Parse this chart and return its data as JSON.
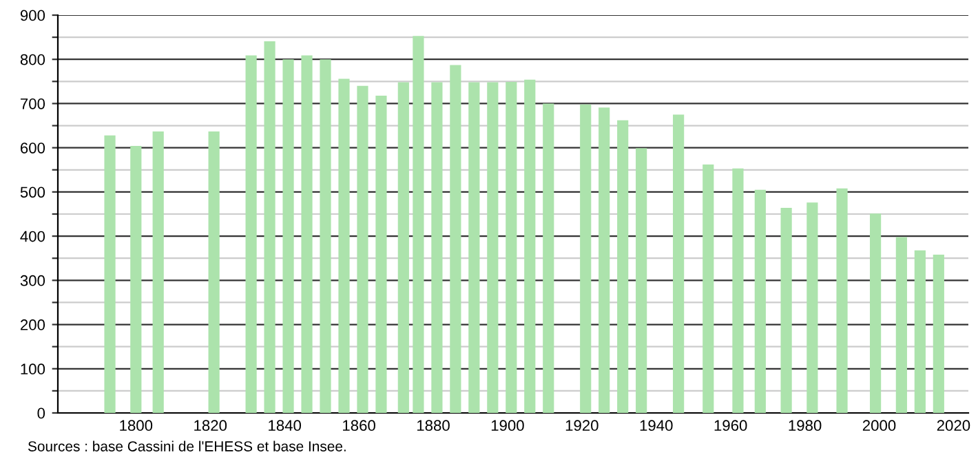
{
  "chart_data": {
    "type": "bar",
    "x": [
      1793,
      1800,
      1806,
      1821,
      1831,
      1836,
      1841,
      1846,
      1851,
      1856,
      1861,
      1866,
      1872,
      1876,
      1881,
      1886,
      1891,
      1896,
      1901,
      1906,
      1911,
      1921,
      1926,
      1931,
      1936,
      1946,
      1954,
      1962,
      1968,
      1975,
      1982,
      1990,
      1999,
      2006,
      2011,
      2016
    ],
    "values": [
      628,
      604,
      637,
      637,
      809,
      841,
      800,
      809,
      800,
      756,
      740,
      718,
      748,
      853,
      748,
      787,
      748,
      748,
      749,
      754,
      700,
      698,
      691,
      662,
      599,
      675,
      562,
      553,
      505,
      464,
      476,
      508,
      451,
      398,
      368,
      358
    ],
    "color": "#ace3ac",
    "xlim": [
      1779,
      2024
    ],
    "xticks": [
      1800,
      1820,
      1840,
      1860,
      1880,
      1900,
      1920,
      1940,
      1960,
      1980,
      2000,
      2020
    ],
    "ylim": [
      0,
      900
    ],
    "yticks": [
      0,
      {
        "value": 50,
        "label": null
      },
      100,
      {
        "value": 150,
        "label": null
      },
      200,
      {
        "value": 250,
        "label": null
      },
      300,
      {
        "value": 350,
        "label": null
      },
      400,
      {
        "value": 450,
        "label": null
      },
      500,
      {
        "value": 550,
        "label": null
      },
      600,
      {
        "value": 650,
        "label": null
      },
      700,
      {
        "value": 750,
        "label": null
      },
      800,
      {
        "value": 850,
        "label": null
      },
      900
    ],
    "grid": "y",
    "annotations": [
      "Sources : base Cassini de l'EHESS et base Insee."
    ]
  }
}
